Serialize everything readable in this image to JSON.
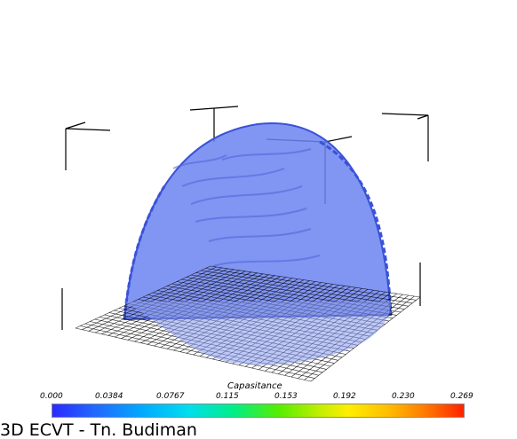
{
  "viewer": {
    "caption": "3D ECVT - Tn. Budiman",
    "colorbar": {
      "title": "Capasitance",
      "ticks": [
        "0.000",
        "0.0384",
        "0.0767",
        "0.115",
        "0.153",
        "0.192",
        "0.230",
        "0.269"
      ],
      "colormap": "rainbow-blue-to-red"
    },
    "colors": {
      "volume_fill": "#6b82f0",
      "volume_edge": "#3a52d8",
      "grid_lines": "#000000",
      "background": "#ffffff"
    }
  }
}
